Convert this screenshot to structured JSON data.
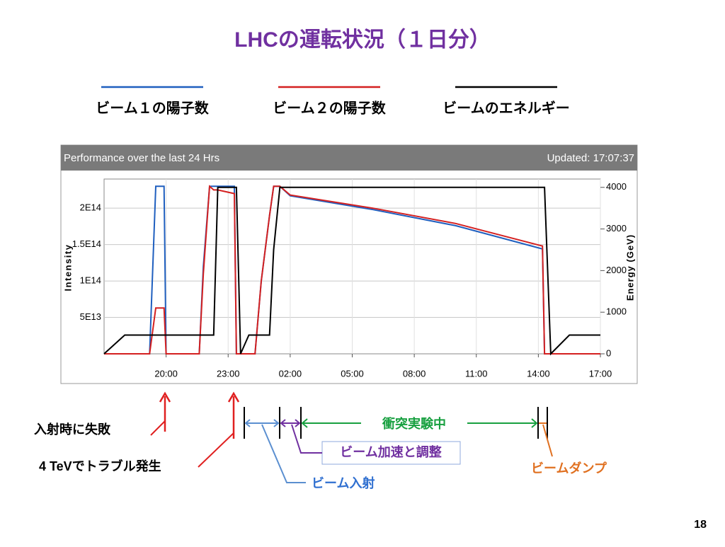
{
  "slide": {
    "title": "LHCの運転状況（１日分）",
    "page_number": "18"
  },
  "chart_data": {
    "type": "line",
    "title": "Performance over the last 24 Hrs",
    "subtitle": "Updated: 17:07:37",
    "y_label": "Intensity",
    "y2_label": "Energy (GeV)",
    "x": [
      17,
      18,
      19.2,
      19.5,
      19.9,
      20.0,
      21.6,
      21.8,
      22.1,
      22.3,
      22.5,
      23.3,
      23.4,
      23.6,
      24.0,
      24.3,
      24.6,
      25.0,
      25.2,
      25.5,
      26,
      30,
      34,
      38.2,
      38.3,
      38.6,
      39.5,
      41
    ],
    "xlim": [
      17,
      41
    ],
    "xticks": [
      {
        "value": 20,
        "label": "20:00"
      },
      {
        "value": 23,
        "label": "23:00"
      },
      {
        "value": 26,
        "label": "02:00"
      },
      {
        "value": 29,
        "label": "05:00"
      },
      {
        "value": 32,
        "label": "08:00"
      },
      {
        "value": 35,
        "label": "11:00"
      },
      {
        "value": 38,
        "label": "14:00"
      },
      {
        "value": 41,
        "label": "17:00"
      }
    ],
    "ylim": [
      0,
      240000000000000.0
    ],
    "yticks": [
      {
        "value": 50000000000000.0,
        "label": "5E13"
      },
      {
        "value": 100000000000000.0,
        "label": "1E14"
      },
      {
        "value": 150000000000000.0,
        "label": "1.5E14"
      },
      {
        "value": 200000000000000.0,
        "label": "2E14"
      }
    ],
    "y2lim": [
      0,
      4200
    ],
    "y2ticks": [
      0,
      1000,
      2000,
      3000,
      4000
    ],
    "grid": true,
    "series": [
      {
        "name": "ビーム１の陽子数",
        "color": "#1f5fbf",
        "values": [
          0,
          0,
          0,
          230000000000000.0,
          230000000000000.0,
          0,
          0,
          120000000000000.0,
          230000000000000.0,
          230000000000000.0,
          230000000000000.0,
          230000000000000.0,
          0,
          0,
          0,
          0,
          100000000000000.0,
          190000000000000.0,
          230000000000000.0,
          230000000000000.0,
          217000000000000.0,
          198000000000000.0,
          176000000000000.0,
          144000000000000.0,
          0,
          0,
          0,
          0
        ]
      },
      {
        "name": "ビーム２の陽子数",
        "color": "#d42020",
        "values": [
          0,
          0,
          0,
          63000000000000.0,
          63000000000000.0,
          0,
          0,
          110000000000000.0,
          230000000000000.0,
          225000000000000.0,
          225000000000000.0,
          220000000000000.0,
          0,
          0,
          0,
          0,
          100000000000000.0,
          190000000000000.0,
          230000000000000.0,
          230000000000000.0,
          218000000000000.0,
          200000000000000.0,
          179000000000000.0,
          148000000000000.0,
          0,
          0,
          0,
          0
        ]
      },
      {
        "name": "ビームのエネルギー",
        "color": "#000000",
        "axis": "y2",
        "values": [
          0,
          450,
          450,
          450,
          450,
          450,
          450,
          450,
          450,
          450,
          4000,
          4000,
          4000,
          0,
          450,
          450,
          450,
          450,
          2500,
          4000,
          4000,
          4000,
          4000,
          4000,
          4000,
          0,
          450,
          450
        ]
      }
    ]
  },
  "annotations": {
    "injection_failure": "入射時に失敗",
    "trouble_4tev": "4 TeVでトラブル発生",
    "collisions": "衝突実験中",
    "acceleration": "ビーム加速と調整",
    "injection": "ビーム入射",
    "dump": "ビームダンプ"
  }
}
